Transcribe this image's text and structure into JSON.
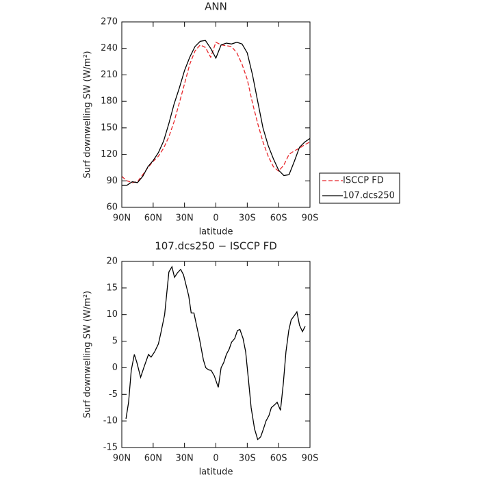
{
  "chart_data": [
    {
      "type": "line",
      "title": "ANN",
      "xlabel": "latitude",
      "ylabel": "Surf downwelling SW (W/m²)",
      "xlim": [
        90,
        -90
      ],
      "xticks": [
        {
          "value": 90,
          "label": "90N"
        },
        {
          "value": 60,
          "label": "60N"
        },
        {
          "value": 30,
          "label": "30N"
        },
        0,
        {
          "value": -30,
          "label": "30S"
        },
        {
          "value": -60,
          "label": "60S"
        },
        {
          "value": -90,
          "label": "90S"
        }
      ],
      "ylim": [
        60,
        270
      ],
      "yticks": [
        60,
        90,
        120,
        150,
        180,
        210,
        240,
        270
      ],
      "x": [
        90,
        85,
        80,
        75,
        70,
        65,
        60,
        55,
        50,
        45,
        40,
        35,
        30,
        25,
        20,
        15,
        10,
        5,
        0,
        -5,
        -10,
        -15,
        -20,
        -25,
        -30,
        -35,
        -40,
        -45,
        -50,
        -55,
        -60,
        -65,
        -70,
        -75,
        -80,
        -85,
        -90
      ],
      "legend": "right",
      "series": [
        {
          "name": "ISCCP FD",
          "color": "#e8262a",
          "dash": true,
          "values": [
            95,
            90,
            88,
            89,
            97,
            105,
            112,
            118,
            127,
            140,
            157,
            178,
            200,
            222,
            237,
            244,
            241,
            230,
            247,
            244,
            243,
            242,
            235,
            222,
            205,
            178,
            155,
            134,
            118,
            106,
            101,
            108,
            120,
            124,
            127,
            131,
            134
          ]
        },
        {
          "name": "107.dcs250",
          "color": "#000000",
          "dash": false,
          "values": [
            85,
            85,
            89,
            88,
            95,
            106,
            113,
            122,
            135,
            155,
            177,
            195,
            215,
            230,
            242,
            248,
            249,
            240,
            229,
            244,
            246,
            245,
            247,
            245,
            235,
            210,
            180,
            150,
            130,
            115,
            102,
            96,
            97,
            112,
            128,
            134,
            138
          ]
        }
      ]
    },
    {
      "type": "line",
      "title": "107.dcs250 − ISCCP FD",
      "xlabel": "latitude",
      "ylabel": "Surf downwelling SW (W/m²)",
      "xlim": [
        90,
        -90
      ],
      "xticks": [
        {
          "value": 90,
          "label": "90N"
        },
        {
          "value": 60,
          "label": "60N"
        },
        {
          "value": 30,
          "label": "30N"
        },
        0,
        {
          "value": -30,
          "label": "30S"
        },
        {
          "value": -60,
          "label": "60S"
        },
        {
          "value": -90,
          "label": "90S"
        }
      ],
      "ylim": [
        -15,
        20
      ],
      "yticks": [
        -15,
        -10,
        -5,
        0,
        5,
        10,
        15,
        20
      ],
      "x": [
        86,
        83.5,
        81,
        78,
        75.6,
        72,
        69,
        64.5,
        62,
        58.6,
        55,
        52.7,
        49,
        47,
        45,
        42,
        39.6,
        37,
        33.7,
        31,
        28.5,
        26,
        23.6,
        21,
        18.5,
        15.8,
        12,
        9.7,
        7,
        4.5,
        1.6,
        -2.3,
        -5,
        -7.5,
        -10,
        -12.7,
        -15,
        -18,
        -20.6,
        -23,
        -26,
        -28.5,
        -31,
        -33.7,
        -37,
        -40,
        -42.8,
        -45.5,
        -48,
        -50.7,
        -53,
        -56,
        -58.6,
        -61.8,
        -64.5,
        -67,
        -69.7,
        -72,
        -75,
        -77.5,
        -80,
        -82.8,
        -85.4
      ],
      "series": [
        {
          "color": "#000000",
          "dash": false,
          "values": [
            -9.6,
            -6.5,
            -0.5,
            2.5,
            1,
            -1.8,
            0,
            2.5,
            2,
            3,
            4.5,
            6.5,
            10,
            14,
            18,
            19,
            17,
            17.8,
            18.5,
            17.5,
            15.5,
            13.5,
            10.3,
            10.3,
            8,
            5.5,
            1.5,
            0,
            -0.4,
            -0.5,
            -1.5,
            -3.7,
            0,
            1,
            2.5,
            3.5,
            4.8,
            5.5,
            7,
            7.2,
            5.5,
            3,
            -2,
            -7.5,
            -11.5,
            -13.5,
            -13,
            -11.5,
            -10,
            -9,
            -7.5,
            -7,
            -6.5,
            -8,
            -3,
            3,
            7,
            9,
            9.8,
            10.5,
            8,
            6.8,
            7.8
          ]
        }
      ]
    }
  ]
}
